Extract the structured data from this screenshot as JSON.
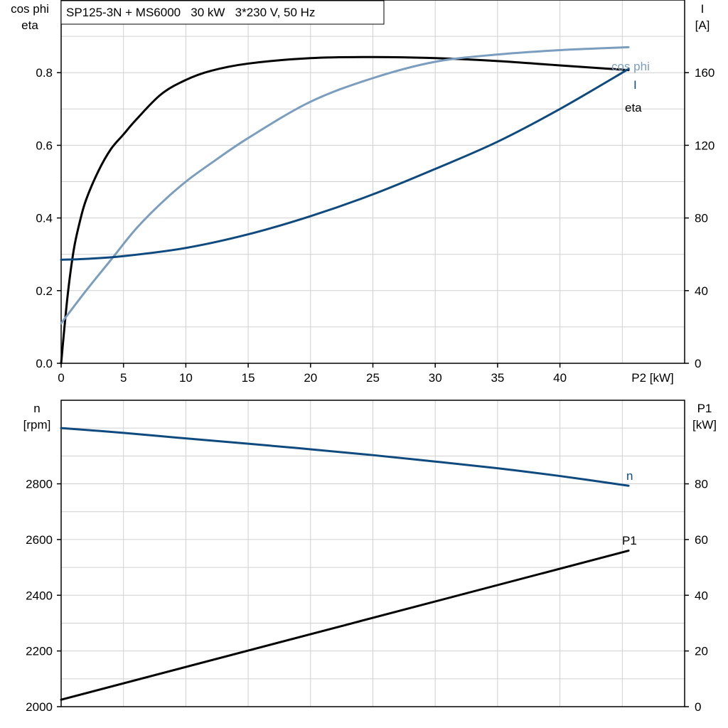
{
  "title": "SP125-3N + MS6000   30 kW   3*230 V, 50 Hz",
  "colors": {
    "black": "#000000",
    "dark_blue": "#0f4a7e",
    "light_blue": "#7b9ebf",
    "grid": "#d0d0d0"
  },
  "chart_data": [
    {
      "type": "line",
      "x": {
        "label": "P2 [kW]",
        "range": [
          0,
          50
        ],
        "ticks": [
          0,
          5,
          10,
          15,
          20,
          25,
          30,
          35,
          40
        ]
      },
      "y_left": {
        "label": [
          "cos phi",
          "eta"
        ],
        "range": [
          0,
          1.0
        ],
        "ticks": [
          0.0,
          0.2,
          0.4,
          0.6,
          0.8
        ],
        "tick_labels": [
          "0.0",
          "0.2",
          "0.4",
          "0.6",
          "0.8"
        ]
      },
      "y_right": {
        "label": [
          "I",
          "[A]"
        ],
        "range": [
          0,
          200
        ],
        "ticks": [
          0,
          40,
          80,
          120,
          160
        ],
        "tick_labels": [
          "0",
          "40",
          "80",
          "120",
          "160"
        ]
      },
      "grid": true,
      "series": [
        {
          "name": "eta",
          "axis": "left",
          "color": "#000000",
          "x": [
            0,
            0.5,
            1,
            1.5,
            2,
            3,
            4,
            5,
            6,
            8,
            10,
            12,
            15,
            20,
            25,
            30,
            35,
            40,
            45.5
          ],
          "y": [
            0.0,
            0.18,
            0.31,
            0.39,
            0.45,
            0.53,
            0.59,
            0.63,
            0.67,
            0.74,
            0.78,
            0.805,
            0.825,
            0.84,
            0.843,
            0.84,
            0.832,
            0.82,
            0.807
          ]
        },
        {
          "name": "cos phi",
          "axis": "left",
          "color": "#7b9ebf",
          "x": [
            0,
            2,
            4,
            6,
            8,
            10,
            12,
            15,
            20,
            25,
            30,
            35,
            40,
            45.5
          ],
          "y": [
            0.11,
            0.2,
            0.285,
            0.37,
            0.44,
            0.5,
            0.55,
            0.62,
            0.72,
            0.785,
            0.83,
            0.85,
            0.862,
            0.87
          ]
        },
        {
          "name": "I",
          "axis": "right",
          "color": "#0f4a7e",
          "x": [
            0,
            2,
            5,
            10,
            15,
            20,
            25,
            30,
            35,
            40,
            45.5
          ],
          "y": [
            57,
            57.5,
            59,
            63.5,
            71,
            81,
            93,
            107,
            122,
            140,
            162
          ]
        }
      ]
    },
    {
      "type": "line",
      "x": {
        "label": "",
        "range": [
          0,
          50
        ],
        "ticks": [
          0,
          5,
          10,
          15,
          20,
          25,
          30,
          35,
          40
        ]
      },
      "y_left": {
        "label": [
          "n",
          "[rpm]"
        ],
        "range": [
          2000,
          3100
        ],
        "ticks": [
          2000,
          2200,
          2400,
          2600,
          2800
        ],
        "tick_labels": [
          "2000",
          "2200",
          "2400",
          "2600",
          "2800"
        ]
      },
      "y_right": {
        "label": [
          "P1",
          "[kW]"
        ],
        "range": [
          0,
          110
        ],
        "ticks": [
          0,
          20,
          40,
          60,
          80
        ],
        "tick_labels": [
          "0",
          "20",
          "40",
          "60",
          "80"
        ]
      },
      "grid": true,
      "series": [
        {
          "name": "n",
          "axis": "left",
          "color": "#0f4a7e",
          "x": [
            0,
            5,
            10,
            15,
            20,
            25,
            30,
            35,
            40,
            45.5
          ],
          "y": [
            3000,
            2983,
            2963,
            2944,
            2924,
            2903,
            2880,
            2856,
            2828,
            2793
          ]
        },
        {
          "name": "P1",
          "axis": "right",
          "color": "#000000",
          "x": [
            0,
            45.5
          ],
          "y": [
            2.5,
            56
          ]
        }
      ]
    }
  ]
}
